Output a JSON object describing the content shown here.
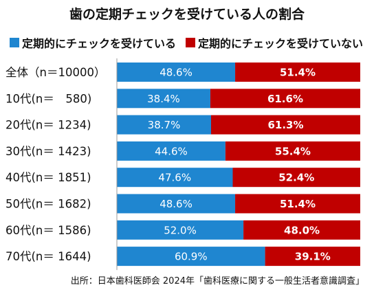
{
  "chart_data": {
    "type": "bar",
    "orientation": "horizontal",
    "stacked": true,
    "title": "歯の定期チェックを受けている人の割合",
    "categories": [
      "全体（n＝10000）",
      "10代(n＝　580)",
      "20代(n＝ 1234)",
      "30代(n＝ 1423)",
      "40代(n＝ 1851)",
      "50代(n＝ 1682)",
      "60代(n＝ 1586)",
      "70代(n＝ 1644)"
    ],
    "series": [
      {
        "name": "定期的にチェックを受けている",
        "color": "#1f86d0",
        "values": [
          48.6,
          38.4,
          38.7,
          44.6,
          47.6,
          48.6,
          52.0,
          60.9
        ],
        "labels": [
          "48.6%",
          "38.4%",
          "38.7%",
          "44.6%",
          "47.6%",
          "48.6%",
          "52.0%",
          "60.9%"
        ]
      },
      {
        "name": "定期的にチェックを受けていない",
        "color": "#c00000",
        "values": [
          51.4,
          61.6,
          61.3,
          55.4,
          52.4,
          51.4,
          48.0,
          39.1
        ],
        "labels": [
          "51.4%",
          "61.6%",
          "61.3%",
          "55.4%",
          "52.4%",
          "51.4%",
          "48.0%",
          "39.1%"
        ]
      }
    ],
    "xlim": [
      0,
      100
    ],
    "grid": false,
    "legend_position": "top",
    "source": "出所：日本歯科医師会 2024年「歯科医療に関する一般生活者意識調査」"
  }
}
